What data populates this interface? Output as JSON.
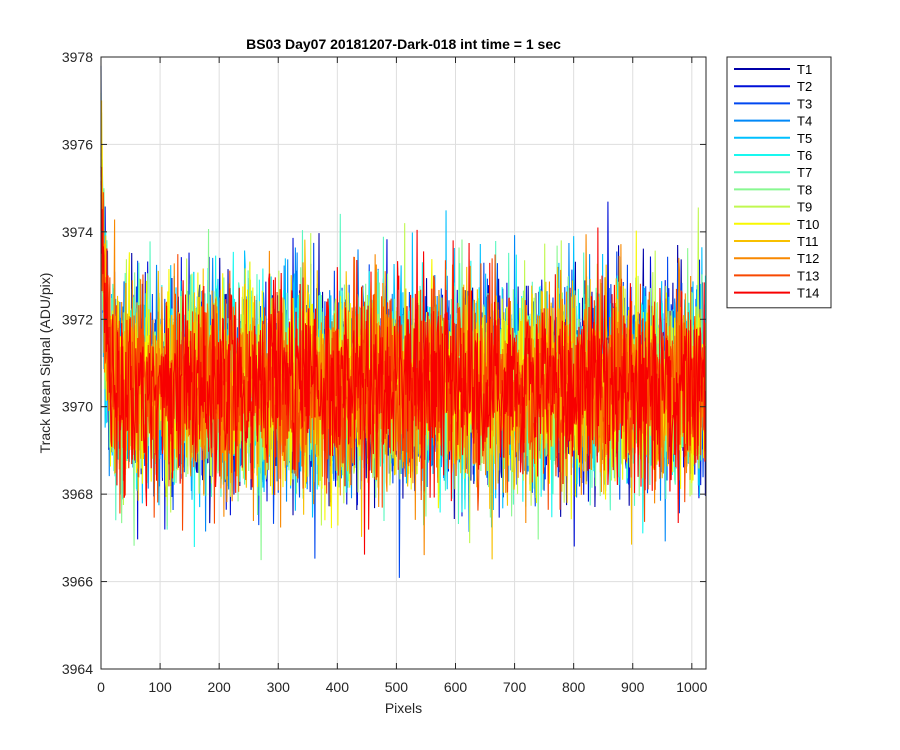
{
  "chart_data": {
    "type": "line",
    "title": "BS03 Day07 20181207-Dark-018 int time = 1 sec",
    "xlabel": "Pixels",
    "ylabel": "Track Mean Signal (ADU/pix)",
    "xlim": [
      0,
      1024
    ],
    "ylim": [
      3964,
      3978
    ],
    "xticks": [
      0,
      100,
      200,
      300,
      400,
      500,
      600,
      700,
      800,
      900,
      1000
    ],
    "yticks": [
      3964,
      3966,
      3968,
      3970,
      3972,
      3974,
      3976,
      3978
    ],
    "grid": true,
    "legend_placement": "outside-top-right",
    "mean_signal": 3970.5,
    "noise_sigma": 1.1,
    "start_peak": 3975.5,
    "series": [
      {
        "name": "T1",
        "color": "#0000a8"
      },
      {
        "name": "T2",
        "color": "#0010d8"
      },
      {
        "name": "T3",
        "color": "#0048f0"
      },
      {
        "name": "T4",
        "color": "#0088f8"
      },
      {
        "name": "T5",
        "color": "#00c0ff"
      },
      {
        "name": "T6",
        "color": "#18f8f0"
      },
      {
        "name": "T7",
        "color": "#58f8c0"
      },
      {
        "name": "T8",
        "color": "#88f890"
      },
      {
        "name": "T9",
        "color": "#c0f850"
      },
      {
        "name": "T10",
        "color": "#f8f800"
      },
      {
        "name": "T11",
        "color": "#f8c000"
      },
      {
        "name": "T12",
        "color": "#f88800"
      },
      {
        "name": "T13",
        "color": "#f84800"
      },
      {
        "name": "T14",
        "color": "#f80000"
      }
    ]
  }
}
